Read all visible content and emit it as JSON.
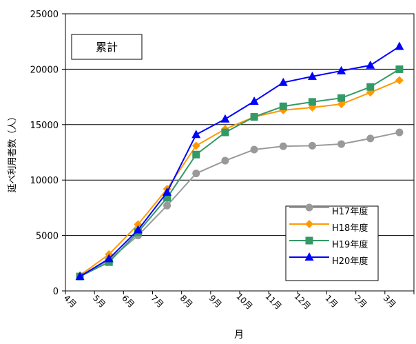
{
  "chart_data": {
    "type": "line",
    "title": "",
    "annotation": "累計",
    "xlabel": "月",
    "ylabel": "延べ利用者数（人）",
    "categories": [
      "4月",
      "5月",
      "6月",
      "7月",
      "8月",
      "9月",
      "10月",
      "11月",
      "12月",
      "1月",
      "2月",
      "3月"
    ],
    "ylim": [
      0,
      25000
    ],
    "yticks": [
      0,
      5000,
      10000,
      15000,
      20000,
      25000
    ],
    "grid": true,
    "legend_position": "bottom-right",
    "series": [
      {
        "name": "H17年度",
        "color": "#999999",
        "marker": "circle",
        "values": [
          1300,
          2800,
          5000,
          7700,
          10600,
          11750,
          12750,
          13050,
          13100,
          13250,
          13750,
          14300
        ]
      },
      {
        "name": "H18年度",
        "color": "#ff9900",
        "marker": "diamond",
        "values": [
          1400,
          3300,
          6000,
          9200,
          13100,
          14600,
          15700,
          16300,
          16550,
          16850,
          17900,
          19000
        ]
      },
      {
        "name": "H19年度",
        "color": "#339966",
        "marker": "square",
        "values": [
          1300,
          2600,
          5300,
          8400,
          12300,
          14300,
          15700,
          16650,
          17050,
          17400,
          18400,
          20000
        ]
      },
      {
        "name": "H20年度",
        "color": "#0000ff",
        "marker": "triangle",
        "values": [
          1300,
          2900,
          5500,
          8900,
          14100,
          15500,
          17100,
          18800,
          19350,
          19850,
          20350,
          22050
        ]
      }
    ]
  }
}
